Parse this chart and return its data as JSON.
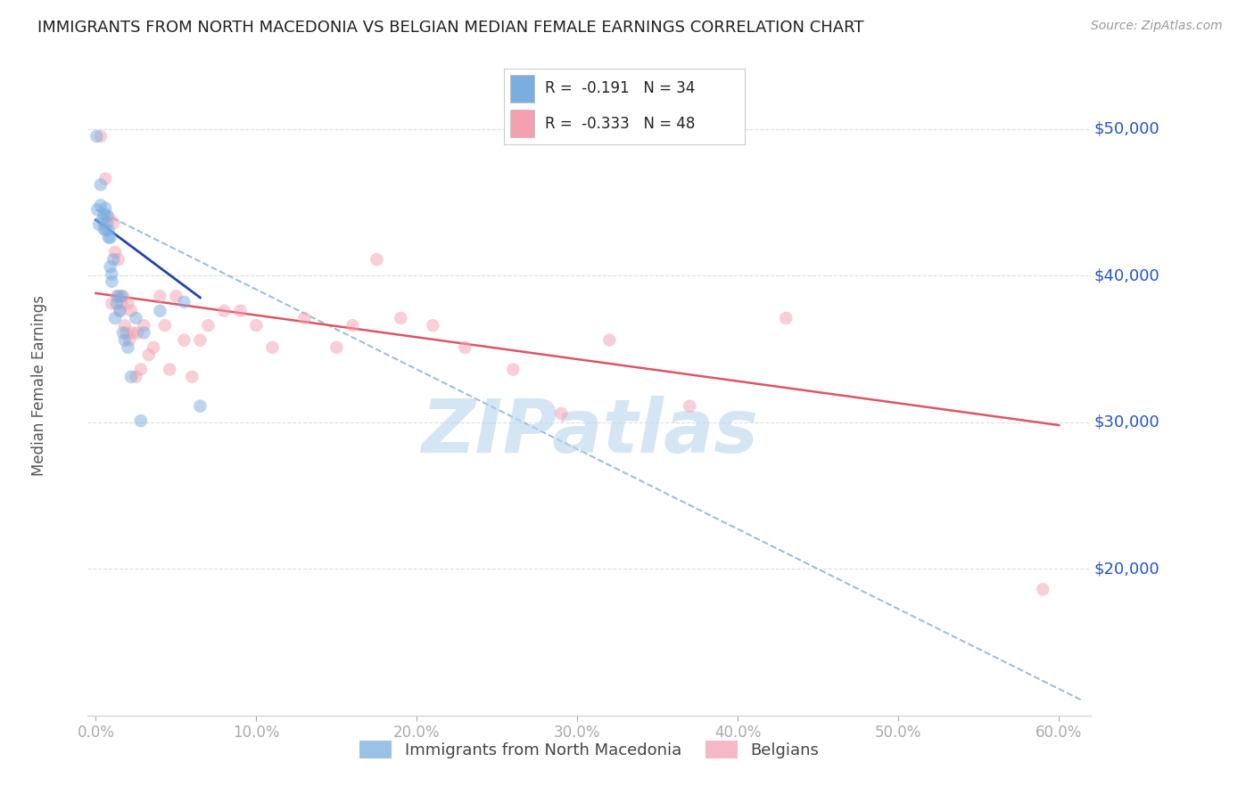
{
  "title": "IMMIGRANTS FROM NORTH MACEDONIA VS BELGIAN MEDIAN FEMALE EARNINGS CORRELATION CHART",
  "source": "Source: ZipAtlas.com",
  "ylabel": "Median Female Earnings",
  "x_tick_labels": [
    "0.0%",
    "10.0%",
    "20.0%",
    "30.0%",
    "40.0%",
    "50.0%",
    "60.0%"
  ],
  "x_tick_positions": [
    0.0,
    0.1,
    0.2,
    0.3,
    0.4,
    0.5,
    0.6
  ],
  "y_tick_labels": [
    "$20,000",
    "$30,000",
    "$40,000",
    "$50,000"
  ],
  "y_tick_values": [
    20000,
    30000,
    40000,
    50000
  ],
  "ylim": [
    10000,
    55000
  ],
  "xlim": [
    -0.005,
    0.62
  ],
  "legend_color1": "#7aade0",
  "legend_color2": "#f4a0b0",
  "watermark": "ZIPatlas",
  "watermark_color": "#b8d4ee",
  "blue_scatter_x": [
    0.0005,
    0.001,
    0.002,
    0.003,
    0.003,
    0.004,
    0.005,
    0.005,
    0.006,
    0.006,
    0.007,
    0.007,
    0.008,
    0.008,
    0.009,
    0.009,
    0.01,
    0.01,
    0.011,
    0.012,
    0.013,
    0.014,
    0.015,
    0.016,
    0.017,
    0.018,
    0.02,
    0.022,
    0.025,
    0.028,
    0.03,
    0.04,
    0.055,
    0.065
  ],
  "blue_scatter_y": [
    49500,
    44500,
    43500,
    44800,
    46200,
    43800,
    44200,
    43200,
    44600,
    43100,
    44100,
    43600,
    43100,
    42600,
    42600,
    40600,
    40100,
    39600,
    41100,
    37100,
    38100,
    38600,
    37600,
    38600,
    36100,
    35600,
    35100,
    33100,
    37100,
    30100,
    36100,
    37600,
    38200,
    31100
  ],
  "pink_scatter_x": [
    0.003,
    0.006,
    0.008,
    0.01,
    0.011,
    0.012,
    0.013,
    0.014,
    0.015,
    0.016,
    0.017,
    0.018,
    0.019,
    0.02,
    0.021,
    0.022,
    0.023,
    0.025,
    0.026,
    0.028,
    0.03,
    0.033,
    0.036,
    0.04,
    0.043,
    0.046,
    0.05,
    0.055,
    0.06,
    0.065,
    0.07,
    0.08,
    0.09,
    0.1,
    0.11,
    0.13,
    0.15,
    0.16,
    0.175,
    0.19,
    0.21,
    0.23,
    0.26,
    0.29,
    0.32,
    0.37,
    0.43,
    0.59
  ],
  "pink_scatter_y": [
    49500,
    46600,
    44000,
    38100,
    43600,
    41600,
    38600,
    41100,
    37600,
    38100,
    38600,
    36600,
    36100,
    38100,
    35600,
    37600,
    36100,
    33100,
    36100,
    33600,
    36600,
    34600,
    35100,
    38600,
    36600,
    33600,
    38600,
    35600,
    33100,
    35600,
    36600,
    37600,
    37600,
    36600,
    35100,
    37100,
    35100,
    36600,
    41100,
    37100,
    36600,
    35100,
    33600,
    30600,
    35600,
    31100,
    37100,
    18600
  ],
  "blue_line_x": [
    0.0,
    0.065
  ],
  "blue_line_y": [
    43800,
    38500
  ],
  "pink_line_x": [
    0.0,
    0.6
  ],
  "pink_line_y": [
    38800,
    29800
  ],
  "dashed_line_x": [
    0.0,
    0.615
  ],
  "dashed_line_y": [
    44500,
    11000
  ],
  "grid_color": "#dddddd",
  "scatter_size": 110,
  "scatter_alpha": 0.5,
  "blue_line_color": "#2244aa",
  "pink_line_color": "#dd5566",
  "dashed_line_color": "#99bbdd"
}
